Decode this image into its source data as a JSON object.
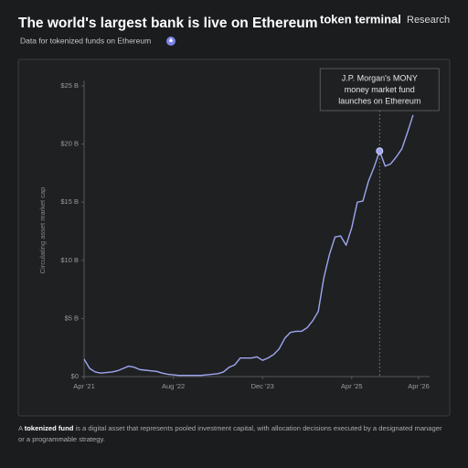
{
  "chart_data": {
    "type": "line",
    "title": "The world's largest bank is live on Ethereum",
    "subtitle": "Data for tokenized funds on Ethereum",
    "brand": {
      "name": "token terminal",
      "suffix": "Research"
    },
    "y_label": "Circulating asset market cap",
    "x": [
      "2021-04",
      "2021-05",
      "2021-06",
      "2021-07",
      "2021-08",
      "2021-09",
      "2021-10",
      "2021-11",
      "2021-12",
      "2022-01",
      "2022-02",
      "2022-03",
      "2022-04",
      "2022-05",
      "2022-06",
      "2022-07",
      "2022-08",
      "2022-09",
      "2022-10",
      "2022-11",
      "2022-12",
      "2023-01",
      "2023-02",
      "2023-03",
      "2023-04",
      "2023-05",
      "2023-06",
      "2023-07",
      "2023-08",
      "2023-09",
      "2023-10",
      "2023-11",
      "2023-12",
      "2024-01",
      "2024-02",
      "2024-03",
      "2024-04",
      "2024-05",
      "2024-06",
      "2024-07",
      "2024-08",
      "2024-09",
      "2024-10",
      "2024-11",
      "2024-12",
      "2025-01",
      "2025-02",
      "2025-03",
      "2025-04",
      "2025-05",
      "2025-06",
      "2025-07",
      "2025-08",
      "2025-09",
      "2025-10",
      "2025-11",
      "2025-12",
      "2026-01",
      "2026-02",
      "2026-03"
    ],
    "series": [
      {
        "name": "Tokenized funds",
        "color": "#9ea6f0",
        "values": [
          1.5,
          0.7,
          0.4,
          0.3,
          0.35,
          0.4,
          0.5,
          0.7,
          0.9,
          0.8,
          0.6,
          0.55,
          0.5,
          0.45,
          0.3,
          0.2,
          0.15,
          0.1,
          0.1,
          0.1,
          0.1,
          0.1,
          0.15,
          0.2,
          0.25,
          0.4,
          0.8,
          1.0,
          1.6,
          1.6,
          1.6,
          1.7,
          1.4,
          1.6,
          1.9,
          2.4,
          3.3,
          3.8,
          3.9,
          3.9,
          4.2,
          4.8,
          5.6,
          8.5,
          10.5,
          12.0,
          12.1,
          11.3,
          12.8,
          15.0,
          15.1,
          16.8,
          18.0,
          19.4,
          18.1,
          18.3,
          18.9,
          19.6,
          21.0,
          22.5
        ]
      }
    ],
    "xlim": [
      "2021-04",
      "2026-04"
    ],
    "xticks": [
      {
        "value": "2021-04",
        "label": "Apr '21"
      },
      {
        "value": "2022-08",
        "label": "Aug '22"
      },
      {
        "value": "2023-12",
        "label": "Dec '23"
      },
      {
        "value": "2025-04",
        "label": "Apr '25"
      },
      {
        "value": "2026-04",
        "label": "Apr '26"
      }
    ],
    "ylim": [
      0,
      25
    ],
    "yticks": [
      {
        "value": 0,
        "label": "$0"
      },
      {
        "value": 5,
        "label": "$5 B"
      },
      {
        "value": 10,
        "label": "$10 B"
      },
      {
        "value": 15,
        "label": "$15 B"
      },
      {
        "value": 20,
        "label": "$20 B"
      },
      {
        "value": 25,
        "label": "$25 B"
      }
    ],
    "grid": false,
    "annotation": {
      "lines": [
        "J.P. Morgan's MONY",
        "money market fund",
        "launches on Ethereum"
      ],
      "x": "2025-09",
      "y": 19.4
    },
    "footnote": {
      "prefix": "A ",
      "bold": "tokenized fund",
      "rest": " is a digital asset that represents pooled investment capital, with allocation decisions executed by a designated manager or a programmable strategy."
    }
  }
}
